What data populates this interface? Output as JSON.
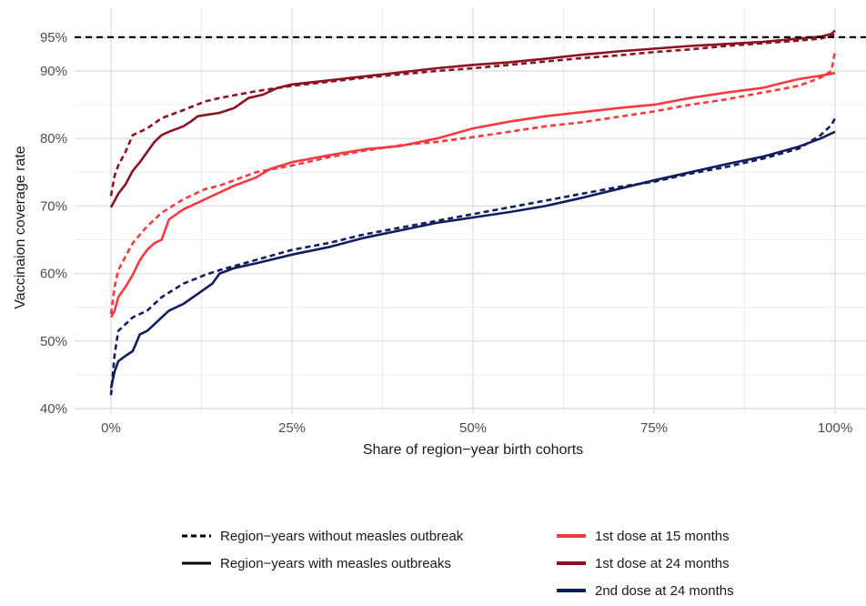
{
  "chart_data": {
    "type": "line",
    "title": "",
    "xlabel": "Share of region−year birth cohorts",
    "ylabel": "Vaccinaion coverage rate",
    "xlim": [
      0,
      100
    ],
    "ylim": [
      40,
      96
    ],
    "x_ticks": [
      0,
      25,
      50,
      75,
      100
    ],
    "x_tick_labels": [
      "0%",
      "25%",
      "50%",
      "75%",
      "100%"
    ],
    "y_ticks": [
      40,
      50,
      60,
      70,
      80,
      90,
      95
    ],
    "y_tick_labels": [
      "40%",
      "50%",
      "60%",
      "70%",
      "80%",
      "90%",
      "95%"
    ],
    "grid": true,
    "reference_line": {
      "y": 95,
      "style": "dashed",
      "color": "#000000"
    },
    "legend_position": "bottom",
    "linetype_legend": [
      {
        "label": "Region−years without measles outbreak",
        "style": "dashed"
      },
      {
        "label": "Region−years with measles outbreaks",
        "style": "solid"
      }
    ],
    "color_legend": [
      {
        "label": "1st dose at 15 months",
        "color": "#f8393f"
      },
      {
        "label": "1st dose at 24 months",
        "color": "#8b1220"
      },
      {
        "label": "2nd dose at 24 months",
        "color": "#121c5e"
      }
    ],
    "series": [
      {
        "dose": "1st dose at 24 months",
        "outbreak": "with",
        "color": "#8b1220",
        "style": "solid",
        "points": [
          [
            0,
            69.8
          ],
          [
            0.5,
            70.8
          ],
          [
            1,
            71.8
          ],
          [
            2,
            73.2
          ],
          [
            3,
            75.2
          ],
          [
            4,
            76.5
          ],
          [
            5,
            78
          ],
          [
            6,
            79.5
          ],
          [
            7,
            80.5
          ],
          [
            8,
            81
          ],
          [
            10,
            81.8
          ],
          [
            11,
            82.5
          ],
          [
            12,
            83.3
          ],
          [
            15,
            83.8
          ],
          [
            17,
            84.5
          ],
          [
            19,
            86
          ],
          [
            21,
            86.5
          ],
          [
            23,
            87.5
          ],
          [
            25,
            88
          ],
          [
            30,
            88.6
          ],
          [
            35,
            89.2
          ],
          [
            40,
            89.8
          ],
          [
            45,
            90.4
          ],
          [
            50,
            90.9
          ],
          [
            55,
            91.3
          ],
          [
            60,
            91.8
          ],
          [
            65,
            92.4
          ],
          [
            70,
            92.9
          ],
          [
            75,
            93.3
          ],
          [
            80,
            93.7
          ],
          [
            85,
            94
          ],
          [
            90,
            94.3
          ],
          [
            95,
            94.8
          ],
          [
            98,
            95.1
          ],
          [
            99.5,
            95.5
          ],
          [
            100,
            96
          ]
        ]
      },
      {
        "dose": "1st dose at 24 months",
        "outbreak": "without",
        "color": "#8b1220",
        "style": "dashed",
        "points": [
          [
            0,
            71.5
          ],
          [
            0.5,
            74.5
          ],
          [
            1,
            76
          ],
          [
            2,
            78
          ],
          [
            3,
            80.5
          ],
          [
            5,
            81.5
          ],
          [
            7,
            83
          ],
          [
            10,
            84.2
          ],
          [
            13,
            85.5
          ],
          [
            15,
            86
          ],
          [
            20,
            87
          ],
          [
            25,
            87.8
          ],
          [
            30,
            88.4
          ],
          [
            35,
            89
          ],
          [
            40,
            89.5
          ],
          [
            45,
            90
          ],
          [
            50,
            90.4
          ],
          [
            55,
            90.9
          ],
          [
            60,
            91.4
          ],
          [
            65,
            91.9
          ],
          [
            70,
            92.3
          ],
          [
            75,
            92.8
          ],
          [
            80,
            93.2
          ],
          [
            85,
            93.7
          ],
          [
            90,
            94.1
          ],
          [
            95,
            94.5
          ],
          [
            98,
            94.8
          ],
          [
            99.5,
            95.2
          ],
          [
            100,
            95.5
          ]
        ]
      },
      {
        "dose": "1st dose at 15 months",
        "outbreak": "with",
        "color": "#f8393f",
        "style": "solid",
        "points": [
          [
            0,
            53.5
          ],
          [
            0.5,
            54.5
          ],
          [
            1,
            56.5
          ],
          [
            2,
            58
          ],
          [
            3,
            59.8
          ],
          [
            4,
            62
          ],
          [
            5,
            63.5
          ],
          [
            6,
            64.5
          ],
          [
            7,
            65
          ],
          [
            8,
            68
          ],
          [
            10,
            69.5
          ],
          [
            12,
            70.5
          ],
          [
            15,
            72
          ],
          [
            17,
            73
          ],
          [
            20,
            74.2
          ],
          [
            22,
            75.5
          ],
          [
            25,
            76.5
          ],
          [
            30,
            77.5
          ],
          [
            35,
            78.4
          ],
          [
            40,
            78.9
          ],
          [
            45,
            80
          ],
          [
            50,
            81.5
          ],
          [
            55,
            82.5
          ],
          [
            60,
            83.3
          ],
          [
            65,
            83.9
          ],
          [
            70,
            84.5
          ],
          [
            75,
            85
          ],
          [
            80,
            86
          ],
          [
            85,
            86.8
          ],
          [
            90,
            87.5
          ],
          [
            93,
            88.3
          ],
          [
            95,
            88.8
          ],
          [
            98,
            89.3
          ],
          [
            100,
            89.7
          ]
        ]
      },
      {
        "dose": "1st dose at 15 months",
        "outbreak": "without",
        "color": "#f8393f",
        "style": "dashed",
        "points": [
          [
            0,
            54
          ],
          [
            0.5,
            58
          ],
          [
            1,
            60.5
          ],
          [
            2,
            62.5
          ],
          [
            3,
            64.5
          ],
          [
            5,
            67
          ],
          [
            7,
            69
          ],
          [
            10,
            71
          ],
          [
            13,
            72.5
          ],
          [
            15,
            73
          ],
          [
            20,
            75
          ],
          [
            25,
            76
          ],
          [
            30,
            77.2
          ],
          [
            35,
            78.2
          ],
          [
            40,
            79
          ],
          [
            45,
            79.5
          ],
          [
            50,
            80.2
          ],
          [
            55,
            81
          ],
          [
            60,
            81.8
          ],
          [
            65,
            82.4
          ],
          [
            70,
            83.2
          ],
          [
            75,
            84
          ],
          [
            80,
            85
          ],
          [
            85,
            85.8
          ],
          [
            90,
            86.8
          ],
          [
            93,
            87.4
          ],
          [
            95,
            87.8
          ],
          [
            98,
            89
          ],
          [
            99.5,
            90
          ],
          [
            100,
            93
          ]
        ]
      },
      {
        "dose": "2nd dose at 24 months",
        "outbreak": "with",
        "color": "#121c5e",
        "style": "solid",
        "points": [
          [
            0,
            43
          ],
          [
            0.5,
            45.5
          ],
          [
            1,
            47
          ],
          [
            2,
            47.8
          ],
          [
            3,
            48.5
          ],
          [
            4,
            51
          ],
          [
            5,
            51.5
          ],
          [
            6,
            52.5
          ],
          [
            7,
            53.5
          ],
          [
            8,
            54.5
          ],
          [
            10,
            55.5
          ],
          [
            12,
            57
          ],
          [
            14,
            58.5
          ],
          [
            15,
            60
          ],
          [
            17,
            60.8
          ],
          [
            20,
            61.5
          ],
          [
            25,
            62.8
          ],
          [
            30,
            63.9
          ],
          [
            35,
            65.3
          ],
          [
            40,
            66.4
          ],
          [
            45,
            67.5
          ],
          [
            50,
            68.3
          ],
          [
            55,
            69.1
          ],
          [
            60,
            70
          ],
          [
            65,
            71.2
          ],
          [
            70,
            72.5
          ],
          [
            75,
            73.8
          ],
          [
            80,
            75
          ],
          [
            85,
            76.2
          ],
          [
            90,
            77.3
          ],
          [
            95,
            78.8
          ],
          [
            98,
            80
          ],
          [
            100,
            81
          ]
        ]
      },
      {
        "dose": "2nd dose at 24 months",
        "outbreak": "without",
        "color": "#121c5e",
        "style": "dashed",
        "points": [
          [
            0,
            42
          ],
          [
            0.5,
            48
          ],
          [
            1,
            51.5
          ],
          [
            2,
            52.5
          ],
          [
            3,
            53.5
          ],
          [
            5,
            54.5
          ],
          [
            7,
            56.5
          ],
          [
            10,
            58.5
          ],
          [
            13,
            59.8
          ],
          [
            15,
            60.5
          ],
          [
            20,
            62
          ],
          [
            25,
            63.5
          ],
          [
            30,
            64.5
          ],
          [
            35,
            65.8
          ],
          [
            40,
            66.8
          ],
          [
            45,
            67.8
          ],
          [
            50,
            68.8
          ],
          [
            55,
            69.8
          ],
          [
            60,
            70.8
          ],
          [
            65,
            71.8
          ],
          [
            70,
            72.8
          ],
          [
            75,
            73.6
          ],
          [
            80,
            74.8
          ],
          [
            85,
            75.8
          ],
          [
            90,
            77
          ],
          [
            95,
            78.5
          ],
          [
            98,
            80.5
          ],
          [
            99.5,
            82
          ],
          [
            100,
            83
          ]
        ]
      }
    ]
  }
}
